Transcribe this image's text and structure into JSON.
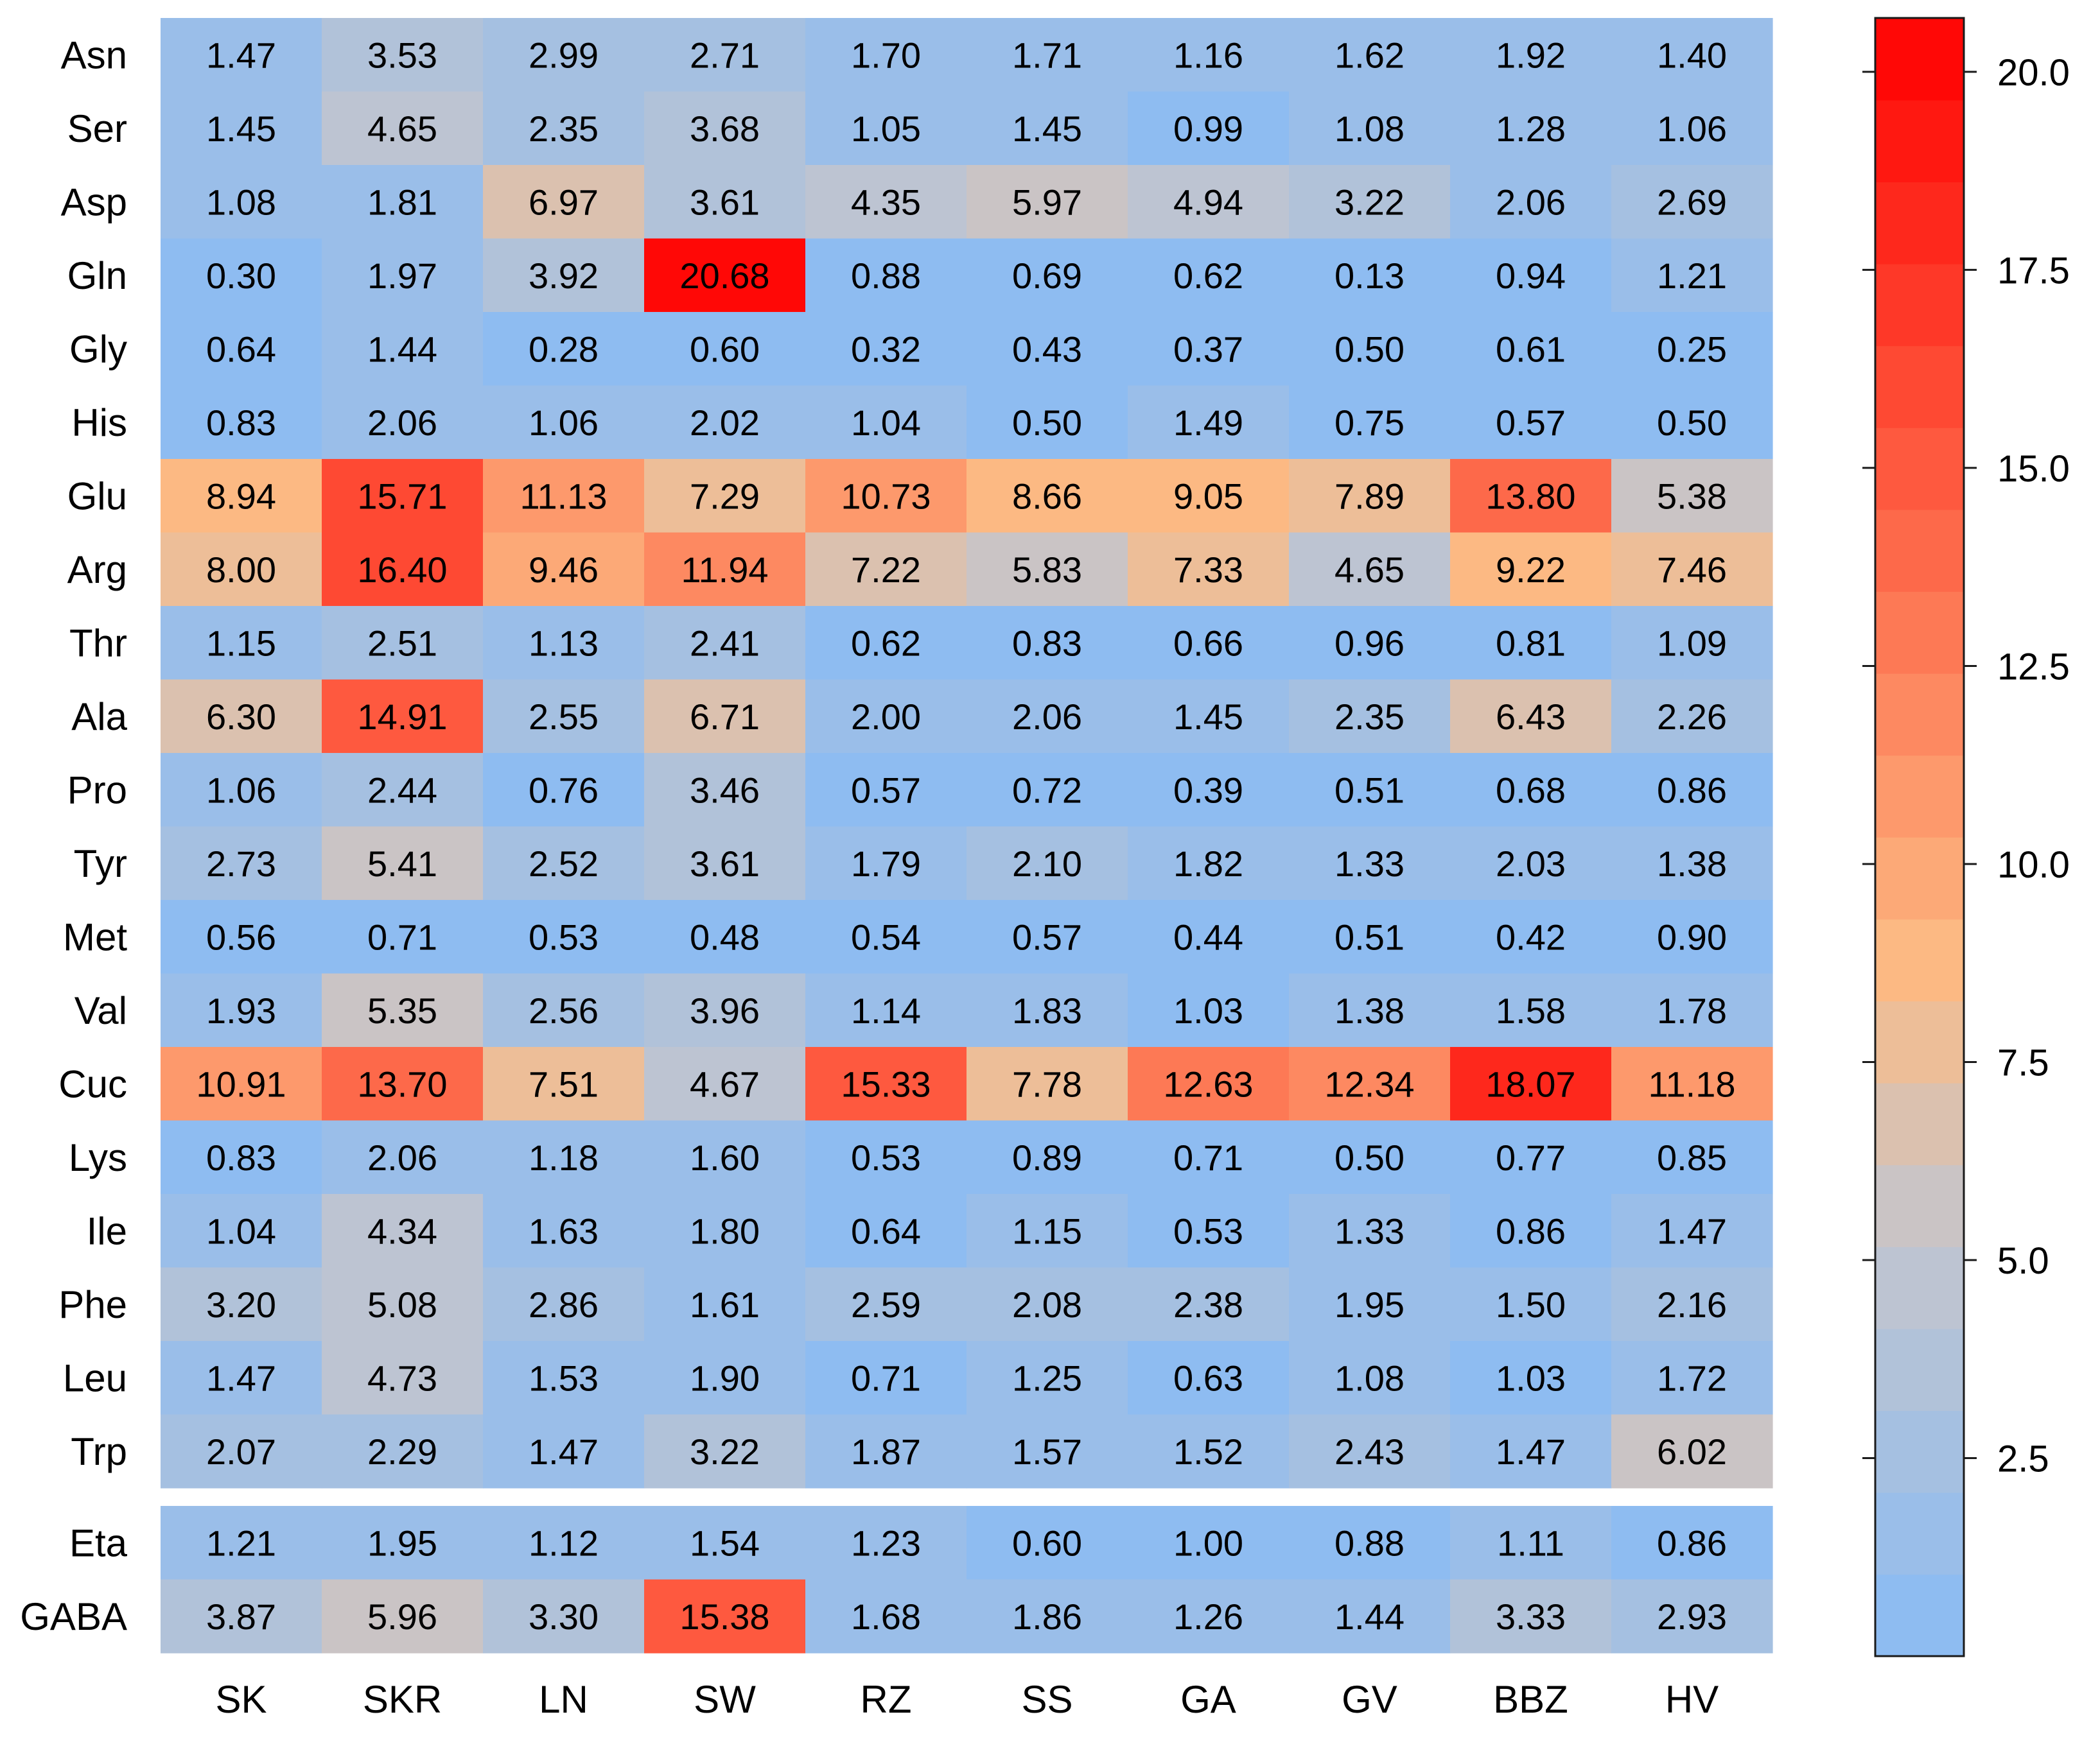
{
  "chart_data": {
    "type": "heatmap",
    "columns": [
      "SK",
      "SKR",
      "LN",
      "SW",
      "RZ",
      "SS",
      "GA",
      "GV",
      "BBZ",
      "HV"
    ],
    "row_groups": [
      {
        "rows": [
          {
            "label": "Asn",
            "values": [
              1.47,
              3.53,
              2.99,
              2.71,
              1.7,
              1.71,
              1.16,
              1.62,
              1.92,
              1.4
            ]
          },
          {
            "label": "Ser",
            "values": [
              1.45,
              4.65,
              2.35,
              3.68,
              1.05,
              1.45,
              0.99,
              1.08,
              1.28,
              1.06
            ]
          },
          {
            "label": "Asp",
            "values": [
              1.08,
              1.81,
              6.97,
              3.61,
              4.35,
              5.97,
              4.94,
              3.22,
              2.06,
              2.69
            ]
          },
          {
            "label": "Gln",
            "values": [
              0.3,
              1.97,
              3.92,
              20.68,
              0.88,
              0.69,
              0.62,
              0.13,
              0.94,
              1.21
            ]
          },
          {
            "label": "Gly",
            "values": [
              0.64,
              1.44,
              0.28,
              0.6,
              0.32,
              0.43,
              0.37,
              0.5,
              0.61,
              0.25
            ]
          },
          {
            "label": "His",
            "values": [
              0.83,
              2.06,
              1.06,
              2.02,
              1.04,
              0.5,
              1.49,
              0.75,
              0.57,
              0.5
            ]
          },
          {
            "label": "Glu",
            "values": [
              8.94,
              15.71,
              11.13,
              7.29,
              10.73,
              8.66,
              9.05,
              7.89,
              13.8,
              5.38
            ]
          },
          {
            "label": "Arg",
            "values": [
              8.0,
              16.4,
              9.46,
              11.94,
              7.22,
              5.83,
              7.33,
              4.65,
              9.22,
              7.46
            ]
          },
          {
            "label": "Thr",
            "values": [
              1.15,
              2.51,
              1.13,
              2.41,
              0.62,
              0.83,
              0.66,
              0.96,
              0.81,
              1.09
            ]
          },
          {
            "label": "Ala",
            "values": [
              6.3,
              14.91,
              2.55,
              6.71,
              2.0,
              2.06,
              1.45,
              2.35,
              6.43,
              2.26
            ]
          },
          {
            "label": "Pro",
            "values": [
              1.06,
              2.44,
              0.76,
              3.46,
              0.57,
              0.72,
              0.39,
              0.51,
              0.68,
              0.86
            ]
          },
          {
            "label": "Tyr",
            "values": [
              2.73,
              5.41,
              2.52,
              3.61,
              1.79,
              2.1,
              1.82,
              1.33,
              2.03,
              1.38
            ]
          },
          {
            "label": "Met",
            "values": [
              0.56,
              0.71,
              0.53,
              0.48,
              0.54,
              0.57,
              0.44,
              0.51,
              0.42,
              0.9
            ]
          },
          {
            "label": "Val",
            "values": [
              1.93,
              5.35,
              2.56,
              3.96,
              1.14,
              1.83,
              1.03,
              1.38,
              1.58,
              1.78
            ]
          },
          {
            "label": "Cuc",
            "values": [
              10.91,
              13.7,
              7.51,
              4.67,
              15.33,
              7.78,
              12.63,
              12.34,
              18.07,
              11.18
            ]
          },
          {
            "label": "Lys",
            "values": [
              0.83,
              2.06,
              1.18,
              1.6,
              0.53,
              0.89,
              0.71,
              0.5,
              0.77,
              0.85
            ]
          },
          {
            "label": "Ile",
            "values": [
              1.04,
              4.34,
              1.63,
              1.8,
              0.64,
              1.15,
              0.53,
              1.33,
              0.86,
              1.47
            ]
          },
          {
            "label": "Phe",
            "values": [
              3.2,
              5.08,
              2.86,
              1.61,
              2.59,
              2.08,
              2.38,
              1.95,
              1.5,
              2.16
            ]
          },
          {
            "label": "Leu",
            "values": [
              1.47,
              4.73,
              1.53,
              1.9,
              0.71,
              1.25,
              0.63,
              1.08,
              1.03,
              1.72
            ]
          },
          {
            "label": "Trp",
            "values": [
              2.07,
              2.29,
              1.47,
              3.22,
              1.87,
              1.57,
              1.52,
              2.43,
              1.47,
              6.02
            ]
          }
        ]
      },
      {
        "rows": [
          {
            "label": "Eta",
            "values": [
              1.21,
              1.95,
              1.12,
              1.54,
              1.23,
              0.6,
              1.0,
              0.88,
              1.11,
              0.86
            ]
          },
          {
            "label": "GABA",
            "values": [
              3.87,
              5.96,
              3.3,
              15.38,
              1.68,
              1.86,
              1.26,
              1.44,
              3.33,
              2.93
            ]
          }
        ]
      }
    ],
    "colorbar": {
      "range": [
        0,
        20.68
      ],
      "ticks": [
        "2.5",
        "5.0",
        "7.5",
        "10.0",
        "12.5",
        "15.0",
        "17.5",
        "20.0"
      ],
      "tick_values": [
        2.5,
        5.0,
        7.5,
        10.0,
        12.5,
        15.0,
        17.5,
        20.0
      ],
      "steps": 20,
      "colors": [
        "#88bbf5",
        "#c5c5cc",
        "#fcbb84",
        "#ff0000"
      ],
      "color_stops": [
        0,
        0.26,
        0.42,
        1.0
      ]
    },
    "value_format": "2 decimals",
    "grid": false,
    "legend": "right"
  }
}
